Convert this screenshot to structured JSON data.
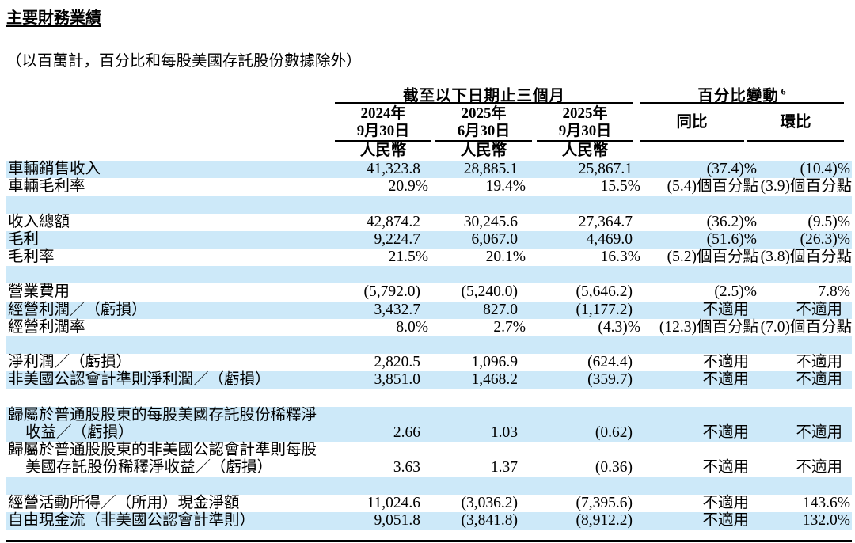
{
  "page": {
    "title": "主要財務業績",
    "subtitle": "（以百萬計，百分比和每股美國存託股份數據除外）"
  },
  "table": {
    "period_group_header": "截至以下日期止三個月",
    "change_group_header": "百分比變動",
    "change_group_footnote": "6",
    "period_columns": [
      {
        "year": "2024年",
        "date": "9月30日",
        "currency": "人民幣"
      },
      {
        "year": "2025年",
        "date": "6月30日",
        "currency": "人民幣"
      },
      {
        "year": "2025年",
        "date": "9月30日",
        "currency": "人民幣"
      }
    ],
    "change_columns": [
      {
        "label": "同比"
      },
      {
        "label": "環比"
      }
    ],
    "na_text": "不適用",
    "shade_color": "#cde9f9",
    "rows": [
      {
        "label": "車輛銷售收入",
        "values": [
          "41,323.8",
          "28,885.1",
          "25,867.1",
          "(37.4)%",
          "(10.4)%"
        ],
        "shaded": true
      },
      {
        "label": "車輛毛利率",
        "values": [
          "20.9%",
          "19.4%",
          "15.5%",
          "(5.4)個百分點",
          "(3.9)個百分點"
        ],
        "shaded": false
      },
      {
        "spacer": true,
        "shaded": true
      },
      {
        "label": "收入總額",
        "values": [
          "42,874.2",
          "30,245.6",
          "27,364.7",
          "(36.2)%",
          "(9.5)%"
        ],
        "shaded": false
      },
      {
        "label": "毛利",
        "values": [
          "9,224.7",
          "6,067.0",
          "4,469.0",
          "(51.6)%",
          "(26.3)%"
        ],
        "shaded": true
      },
      {
        "label": "毛利率",
        "values": [
          "21.5%",
          "20.1%",
          "16.3%",
          "(5.2)個百分點",
          "(3.8)個百分點"
        ],
        "shaded": false
      },
      {
        "spacer": true,
        "shaded": true
      },
      {
        "label": "營業費用",
        "values": [
          "(5,792.0)",
          "(5,240.0)",
          "(5,646.2)",
          "(2.5)%",
          "7.8%"
        ],
        "shaded": false
      },
      {
        "label": "經營利潤／（虧損）",
        "values": [
          "3,432.7",
          "827.0",
          "(1,177.2)",
          "不適用",
          "不適用"
        ],
        "shaded": true
      },
      {
        "label": "經營利潤率",
        "values": [
          "8.0%",
          "2.7%",
          "(4.3)%",
          "(12.3)個百分點",
          "(7.0)個百分點"
        ],
        "shaded": false
      },
      {
        "spacer": true,
        "shaded": true
      },
      {
        "label": "淨利潤／（虧損）",
        "values": [
          "2,820.5",
          "1,096.9",
          "(624.4)",
          "不適用",
          "不適用"
        ],
        "shaded": false
      },
      {
        "label": "非美國公認會計準則淨利潤／（虧損）",
        "values": [
          "3,851.0",
          "1,468.2",
          "(359.7)",
          "不適用",
          "不適用"
        ],
        "shaded": true
      },
      {
        "spacer": true,
        "shaded": false
      },
      {
        "label": "歸屬於普通股股東的每股美國存託股份稀釋淨",
        "label2": "收益／（虧損）",
        "values": [
          "2.66",
          "1.03",
          "(0.62)",
          "不適用",
          "不適用"
        ],
        "shaded": true,
        "two_line": true
      },
      {
        "label": "歸屬於普通股股東的非美國公認會計準則每股",
        "label2": "美國存託股份稀釋淨收益／（虧損）",
        "values": [
          "3.63",
          "1.37",
          "(0.36)",
          "不適用",
          "不適用"
        ],
        "shaded": false,
        "two_line": true
      },
      {
        "spacer": true,
        "shaded": true
      },
      {
        "label": "經營活動所得／（所用）現金淨額",
        "values": [
          "11,024.6",
          "(3,036.2)",
          "(7,395.6)",
          "不適用",
          "143.6%"
        ],
        "shaded": false
      },
      {
        "label": "自由現金流（非美國公認會計準則）",
        "values": [
          "9,051.8",
          "(3,841.8)",
          "(8,912.2)",
          "不適用",
          "132.0%"
        ],
        "shaded": true
      }
    ]
  }
}
